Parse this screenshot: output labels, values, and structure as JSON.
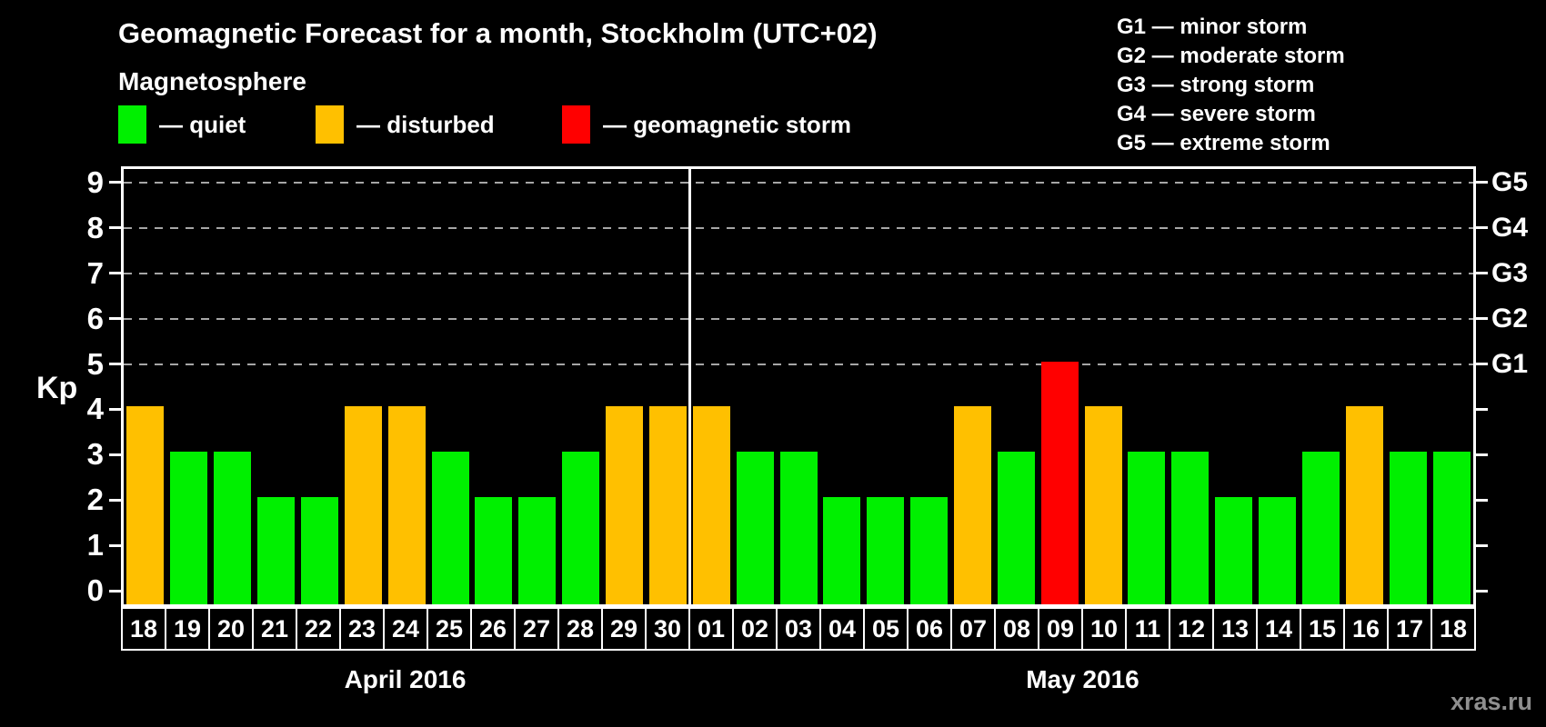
{
  "title": "Geomagnetic Forecast for a month, Stockholm (UTC+02)",
  "magnetosphere": {
    "heading": "Magnetosphere",
    "legend": [
      {
        "key": "quiet",
        "label": "— quiet",
        "color": "#00F000"
      },
      {
        "key": "disturbed",
        "label": "— disturbed",
        "color": "#FFC000"
      },
      {
        "key": "storm",
        "label": "— geomagnetic storm",
        "color": "#FF0000"
      }
    ]
  },
  "g_scale_legend": [
    "G1 — minor storm",
    "G2 — moderate storm",
    "G3 — strong storm",
    "G4 — severe storm",
    "G5 — extreme storm"
  ],
  "watermark": "xras.ru",
  "chart_data": {
    "type": "bar",
    "title": "Geomagnetic Forecast for a month, Stockholm (UTC+02)",
    "xlabel": "",
    "ylabel": "Kp",
    "ylim": [
      0,
      9.4
    ],
    "yticks": [
      0,
      1,
      2,
      3,
      4,
      5,
      6,
      7,
      8,
      9
    ],
    "gridlines_at": [
      5,
      6,
      7,
      8,
      9
    ],
    "grid": "dashed horizontal at storm levels",
    "legend_position": "top",
    "right_axis_labels": [
      {
        "value": 5,
        "label": "G1"
      },
      {
        "value": 6,
        "label": "G2"
      },
      {
        "value": 7,
        "label": "G3"
      },
      {
        "value": 8,
        "label": "G4"
      },
      {
        "value": 9,
        "label": "G5"
      }
    ],
    "months": [
      {
        "label": "April 2016",
        "days": 13
      },
      {
        "label": "May 2016",
        "days": 18
      }
    ],
    "categories": [
      "18",
      "19",
      "20",
      "21",
      "22",
      "23",
      "24",
      "25",
      "26",
      "27",
      "28",
      "29",
      "30",
      "01",
      "02",
      "03",
      "04",
      "05",
      "06",
      "07",
      "08",
      "09",
      "10",
      "11",
      "12",
      "13",
      "14",
      "15",
      "16",
      "17",
      "18"
    ],
    "values": [
      4,
      3,
      3,
      2,
      2,
      4,
      4,
      3,
      2,
      2,
      3,
      4,
      4,
      4,
      3,
      3,
      2,
      2,
      2,
      4,
      3,
      5,
      4,
      3,
      3,
      2,
      2,
      3,
      4,
      3,
      3
    ],
    "statuses": [
      "disturbed",
      "quiet",
      "quiet",
      "quiet",
      "quiet",
      "disturbed",
      "disturbed",
      "quiet",
      "quiet",
      "quiet",
      "quiet",
      "disturbed",
      "disturbed",
      "disturbed",
      "quiet",
      "quiet",
      "quiet",
      "quiet",
      "quiet",
      "disturbed",
      "quiet",
      "storm",
      "disturbed",
      "quiet",
      "quiet",
      "quiet",
      "quiet",
      "quiet",
      "disturbed",
      "quiet",
      "quiet"
    ],
    "colors": {
      "quiet": "#00F000",
      "disturbed": "#FFC000",
      "storm": "#FF0000"
    }
  }
}
